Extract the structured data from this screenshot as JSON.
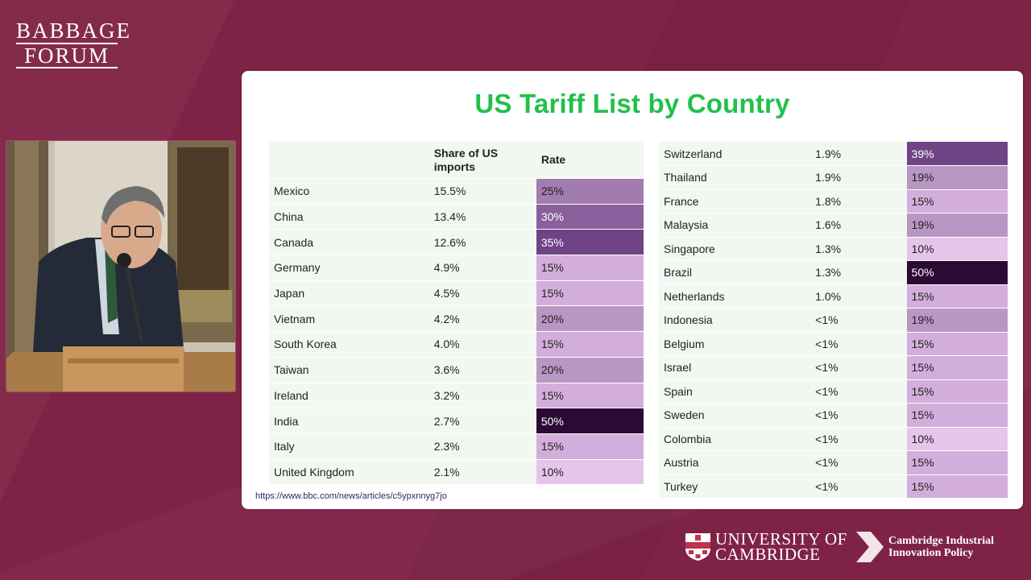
{
  "brand": {
    "line1": "BABBAGE",
    "line2": "FORUM"
  },
  "slide": {
    "title": "US Tariff List by Country",
    "source_url": "https://www.bbc.com/news/articles/c5ypxnnyg7jo",
    "headers": {
      "country": "",
      "share": "Share of US imports",
      "rate": "Rate"
    }
  },
  "rate_colors": {
    "10%": "#e5c5ea",
    "15%": "#d3aedc",
    "19%": "#b996c4",
    "20%": "#b996c4",
    "25%": "#a27cb0",
    "30%": "#8a5f9b",
    "35%": "#6f4384",
    "39%": "#6f4384",
    "50%": "#2c0a35"
  },
  "left_rows": [
    {
      "country": "Mexico",
      "share": "15.5%",
      "rate": "25%"
    },
    {
      "country": "China",
      "share": "13.4%",
      "rate": "30%"
    },
    {
      "country": "Canada",
      "share": "12.6%",
      "rate": "35%"
    },
    {
      "country": "Germany",
      "share": "4.9%",
      "rate": "15%"
    },
    {
      "country": "Japan",
      "share": "4.5%",
      "rate": "15%"
    },
    {
      "country": "Vietnam",
      "share": "4.2%",
      "rate": "20%"
    },
    {
      "country": "South Korea",
      "share": "4.0%",
      "rate": "15%"
    },
    {
      "country": "Taiwan",
      "share": "3.6%",
      "rate": "20%"
    },
    {
      "country": "Ireland",
      "share": "3.2%",
      "rate": "15%"
    },
    {
      "country": "India",
      "share": "2.7%",
      "rate": "50%"
    },
    {
      "country": "Italy",
      "share": "2.3%",
      "rate": "15%"
    },
    {
      "country": "United Kingdom",
      "share": "2.1%",
      "rate": "10%"
    }
  ],
  "right_rows": [
    {
      "country": "Switzerland",
      "share": "1.9%",
      "rate": "39%"
    },
    {
      "country": "Thailand",
      "share": "1.9%",
      "rate": "19%"
    },
    {
      "country": "France",
      "share": "1.8%",
      "rate": "15%"
    },
    {
      "country": "Malaysia",
      "share": "1.6%",
      "rate": "19%"
    },
    {
      "country": "Singapore",
      "share": "1.3%",
      "rate": "10%"
    },
    {
      "country": "Brazil",
      "share": "1.3%",
      "rate": "50%"
    },
    {
      "country": "Netherlands",
      "share": "1.0%",
      "rate": "15%"
    },
    {
      "country": "Indonesia",
      "share": "<1%",
      "rate": "19%"
    },
    {
      "country": "Belgium",
      "share": "<1%",
      "rate": "15%"
    },
    {
      "country": "Israel",
      "share": "<1%",
      "rate": "15%"
    },
    {
      "country": "Spain",
      "share": "<1%",
      "rate": "15%"
    },
    {
      "country": "Sweden",
      "share": "<1%",
      "rate": "15%"
    },
    {
      "country": "Colombia",
      "share": "<1%",
      "rate": "10%"
    },
    {
      "country": "Austria",
      "share": "<1%",
      "rate": "15%"
    },
    {
      "country": "Turkey",
      "share": "<1%",
      "rate": "15%"
    }
  ],
  "footer": {
    "cambridge_line1": "UNIVERSITY OF",
    "cambridge_line2": "CAMBRIDGE",
    "cip_line1": "Cambridge Industrial",
    "cip_line2": "Innovation Policy"
  }
}
